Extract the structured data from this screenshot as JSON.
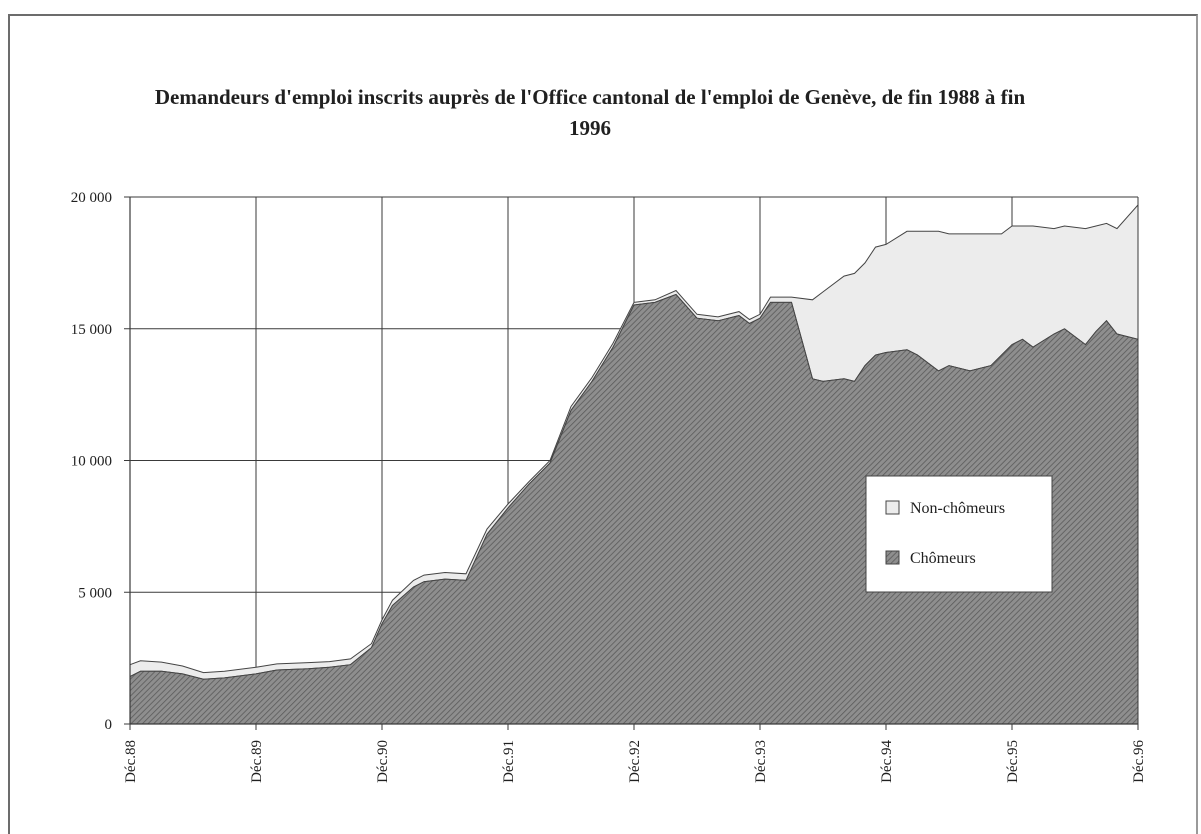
{
  "colors": {
    "chomeurs_fill": "#8e8e8e",
    "chomeurs_hatch": "#5a5a5a",
    "non_chomeurs_fill": "#ececec",
    "grid": "#3a3a3a"
  },
  "chart_data": {
    "type": "area",
    "stacked": true,
    "title": "Demandeurs d'emploi inscrits auprès de l'Office cantonal de l'emploi de Genève, de fin 1988 à fin 1996",
    "xlabel": "",
    "ylabel": "",
    "ylim": [
      0,
      20000
    ],
    "yticks": [
      0,
      5000,
      10000,
      15000,
      20000
    ],
    "ytick_labels": [
      "0",
      "5 000",
      "10 000",
      "15 000",
      "20 000"
    ],
    "xlim": [
      0,
      96
    ],
    "xticks": [
      0,
      12,
      24,
      36,
      48,
      60,
      72,
      84,
      96
    ],
    "xtick_labels": [
      "Déc.88",
      "Déc.89",
      "Déc.90",
      "Déc.91",
      "Déc.92",
      "Déc.93",
      "Déc.94",
      "Déc.95",
      "Déc.96"
    ],
    "grid": true,
    "legend": {
      "placement": "right-center",
      "entries": [
        "Non-chômeurs",
        "Chômeurs"
      ]
    },
    "x": [
      0,
      1,
      3,
      5,
      7,
      9,
      12,
      14,
      17,
      19,
      21,
      23,
      24,
      25,
      27,
      28,
      30,
      32,
      34,
      36,
      38,
      40,
      42,
      44,
      46,
      48,
      50,
      52,
      54,
      56,
      58,
      59,
      60,
      61,
      63,
      65,
      66,
      68,
      69,
      70,
      71,
      72,
      74,
      75,
      77,
      78,
      80,
      82,
      83,
      84,
      85,
      86,
      88,
      89,
      91,
      92,
      93,
      94,
      96
    ],
    "series": [
      {
        "name": "Chômeurs",
        "values": [
          1800,
          2000,
          2000,
          1900,
          1700,
          1750,
          1900,
          2050,
          2100,
          2150,
          2250,
          2900,
          3800,
          4500,
          5200,
          5400,
          5500,
          5450,
          7200,
          8200,
          9100,
          9900,
          11900,
          13000,
          14300,
          15900,
          16000,
          16300,
          15400,
          15300,
          15500,
          15200,
          15400,
          16000,
          16000,
          13100,
          13000,
          13100,
          13000,
          13600,
          14000,
          14100,
          14200,
          14000,
          13400,
          13600,
          13400,
          13600,
          14000,
          14400,
          14600,
          14300,
          14800,
          15000,
          14400,
          14900,
          15300,
          14800,
          14600
        ]
      },
      {
        "name": "Non-chômeurs",
        "values": [
          450,
          400,
          350,
          300,
          250,
          250,
          250,
          230,
          230,
          220,
          220,
          150,
          150,
          200,
          250,
          250,
          250,
          250,
          200,
          150,
          100,
          100,
          150,
          150,
          150,
          100,
          100,
          150,
          150,
          150,
          150,
          150,
          150,
          200,
          200,
          3000,
          3400,
          3900,
          4100,
          3900,
          4100,
          4100,
          4500,
          4700,
          5300,
          5000,
          5200,
          5000,
          4600,
          4500,
          4300,
          4600,
          4000,
          3900,
          4400,
          4000,
          3700,
          4000,
          5100
        ]
      }
    ]
  }
}
